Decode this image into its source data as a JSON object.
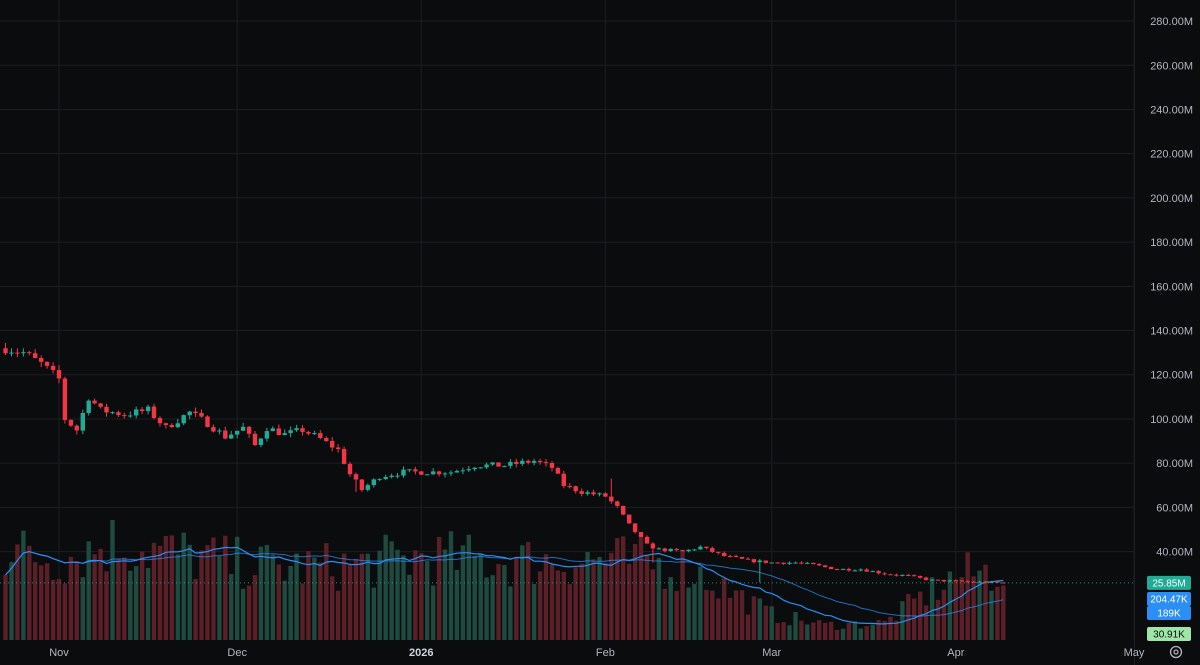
{
  "chart_data": {
    "type": "candlestick",
    "price_axis": {
      "ylim": [
        0,
        285
      ],
      "ticks": [
        40,
        60,
        80,
        100,
        120,
        140,
        160,
        180,
        200,
        220,
        240,
        260,
        280
      ],
      "tick_labels": [
        "40.00M",
        "60.00M",
        "80.00M",
        "100.00M",
        "120.00M",
        "140.00M",
        "160.00M",
        "180.00M",
        "200.00M",
        "220.00M",
        "240.00M",
        "260.00M",
        "280.00M"
      ]
    },
    "time_axis": {
      "labels": [
        {
          "label": "Nov",
          "date": "2025-11-01",
          "bold": false
        },
        {
          "label": "Dec",
          "date": "2025-12-01",
          "bold": false
        },
        {
          "label": "2026",
          "date": "2026-01-01",
          "bold": true
        },
        {
          "label": "Feb",
          "date": "2026-02-01",
          "bold": false
        },
        {
          "label": "Mar",
          "date": "2026-03-01",
          "bold": false
        },
        {
          "label": "Apr",
          "date": "2026-04-01",
          "bold": false
        },
        {
          "label": "May",
          "date": "2026-05-01",
          "bold": false
        }
      ]
    },
    "price_anchors": [
      [
        "2025-10-23",
        132
      ],
      [
        "2025-10-26",
        130
      ],
      [
        "2025-10-29",
        125
      ],
      [
        "2025-11-01",
        118
      ],
      [
        "2025-11-02",
        100
      ],
      [
        "2025-11-04",
        95
      ],
      [
        "2025-11-06",
        110
      ],
      [
        "2025-11-08",
        104
      ],
      [
        "2025-11-12",
        102
      ],
      [
        "2025-11-16",
        104
      ],
      [
        "2025-11-19",
        96
      ],
      [
        "2025-11-23",
        103
      ],
      [
        "2025-11-26",
        98
      ],
      [
        "2025-11-29",
        92
      ],
      [
        "2025-12-02",
        96
      ],
      [
        "2025-12-04",
        88
      ],
      [
        "2025-12-06",
        96
      ],
      [
        "2025-12-09",
        93
      ],
      [
        "2025-12-12",
        95
      ],
      [
        "2025-12-15",
        91
      ],
      [
        "2025-12-18",
        86
      ],
      [
        "2025-12-20",
        75
      ],
      [
        "2025-12-22",
        68
      ],
      [
        "2025-12-25",
        74
      ],
      [
        "2025-12-29",
        76
      ],
      [
        "2026-01-03",
        76
      ],
      [
        "2026-01-06",
        76
      ],
      [
        "2026-01-10",
        79
      ],
      [
        "2026-01-15",
        79
      ],
      [
        "2026-01-20",
        81
      ],
      [
        "2026-01-23",
        78
      ],
      [
        "2026-01-25",
        70
      ],
      [
        "2026-01-28",
        67
      ],
      [
        "2026-02-01",
        65
      ],
      [
        "2026-02-03",
        60
      ],
      [
        "2026-02-05",
        52
      ],
      [
        "2026-02-08",
        43
      ],
      [
        "2026-02-10",
        41
      ],
      [
        "2026-02-14",
        40
      ],
      [
        "2026-02-17",
        42
      ],
      [
        "2026-02-21",
        38
      ],
      [
        "2026-02-25",
        36
      ],
      [
        "2026-03-01",
        35
      ],
      [
        "2026-03-05",
        35
      ],
      [
        "2026-03-08",
        34
      ],
      [
        "2026-03-12",
        32
      ],
      [
        "2026-03-16",
        32
      ],
      [
        "2026-03-20",
        30
      ],
      [
        "2026-03-24",
        29
      ],
      [
        "2026-03-28",
        27
      ],
      [
        "2026-04-02",
        26.5
      ],
      [
        "2026-04-05",
        26.2
      ],
      [
        "2026-04-09",
        25.85
      ]
    ],
    "wick_spikes": [
      {
        "date": "2025-12-21",
        "high": 70,
        "low": 67
      },
      {
        "date": "2026-02-09",
        "high": 40,
        "low": 35
      },
      {
        "date": "2026-02-02",
        "high": 73,
        "low": 64
      },
      {
        "date": "2026-02-27",
        "high": 35,
        "low": 26
      }
    ],
    "volume_levels": [
      [
        "2025-10-23",
        210
      ],
      [
        "2025-11-01",
        190
      ],
      [
        "2025-11-10",
        230
      ],
      [
        "2025-11-20",
        205
      ],
      [
        "2025-12-01",
        180
      ],
      [
        "2025-12-10",
        170
      ],
      [
        "2025-12-20",
        175
      ],
      [
        "2026-01-01",
        195
      ],
      [
        "2026-01-15",
        185
      ],
      [
        "2026-02-01",
        190
      ],
      [
        "2026-02-15",
        170
      ],
      [
        "2026-03-01",
        60
      ],
      [
        "2026-03-10",
        35
      ],
      [
        "2026-03-20",
        40
      ],
      [
        "2026-03-25",
        90
      ],
      [
        "2026-04-01",
        150
      ],
      [
        "2026-04-09",
        165
      ]
    ],
    "colors": {
      "background": "#0b0c0e",
      "grid": "#1c1e23",
      "up": "#22ab94",
      "down": "#f23645",
      "up_volume": "#1e4a3f",
      "down_volume": "#5a1f27",
      "ma": "#2a8ef5",
      "price_line": "#22ab94"
    },
    "last_price_label": "25.85M",
    "indicator_labels": [
      "204.47K",
      "189K"
    ],
    "last_volume_label": "30.91K"
  }
}
